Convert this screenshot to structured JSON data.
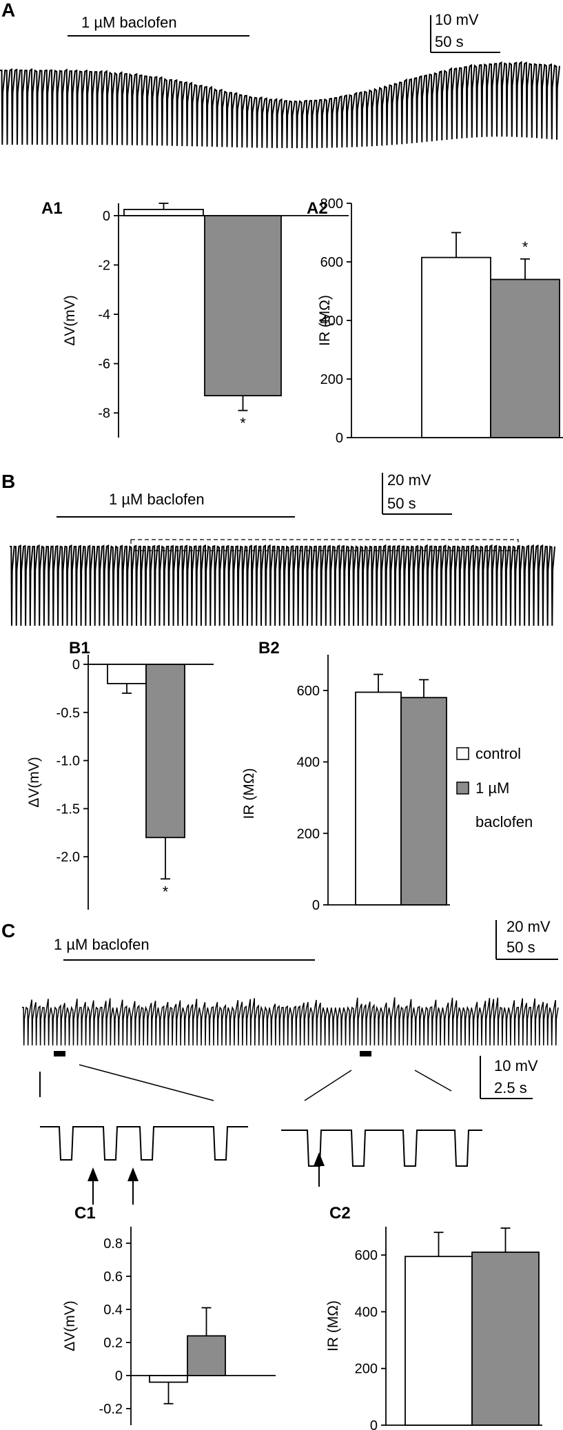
{
  "panels": {
    "A": {
      "letter": "A",
      "drug_label": "1 µM baclofen",
      "scale_v": "10 mV",
      "scale_t": "50 s"
    },
    "B": {
      "letter": "B",
      "drug_label": "1 µM baclofen",
      "scale_v": "20 mV",
      "scale_t": "50 s"
    },
    "C": {
      "letter": "C",
      "drug_label": "1 µM baclofen",
      "scale_v": "20 mV",
      "scale_t": "50 s",
      "inset_scale_v": "10 mV",
      "inset_scale_t": "2.5 s"
    }
  },
  "legend": {
    "control": "control",
    "baclofen_line1": "1 µM",
    "baclofen_line2": "baclofen",
    "control_color": "#ffffff",
    "baclofen_color": "#8c8c8c"
  },
  "chart_data": [
    {
      "id": "A1",
      "type": "bar",
      "title": "A1",
      "ylabel": "ΔV(mV)",
      "ylim": [
        -9,
        0.5
      ],
      "yticks": [
        0,
        -2,
        -4,
        -6,
        -8
      ],
      "yticklabels": [
        "0",
        "-2",
        "-4",
        "-6",
        "-8"
      ],
      "series": [
        {
          "values": [
            0.25,
            -7.3
          ],
          "errors": [
            0.25,
            0.6
          ]
        }
      ],
      "annotations": [
        "*"
      ]
    },
    {
      "id": "A2",
      "type": "bar",
      "title": "A2",
      "ylabel": "IR (MΩ)",
      "ylim": [
        0,
        800
      ],
      "yticks": [
        0,
        200,
        400,
        600,
        800
      ],
      "yticklabels": [
        "0",
        "200",
        "400",
        "600",
        "800"
      ],
      "series": [
        {
          "values": [
            615,
            540
          ],
          "errors": [
            85,
            70
          ]
        }
      ],
      "annotations": [
        "*"
      ]
    },
    {
      "id": "B1",
      "type": "bar",
      "title": "B1",
      "ylabel": "ΔV(mV)",
      "ylim": [
        -2.55,
        0.1
      ],
      "yticks": [
        0,
        -0.5,
        -1.0,
        -1.5,
        -2.0
      ],
      "yticklabels": [
        "0",
        "-0.5",
        "-1.0",
        "-1.5",
        "-2.0"
      ],
      "series": [
        {
          "values": [
            -0.2,
            -1.8
          ],
          "errors": [
            0.1,
            0.43
          ]
        }
      ],
      "annotations": [
        "*"
      ]
    },
    {
      "id": "B2",
      "type": "bar",
      "title": "B2",
      "ylabel": "IR (MΩ)",
      "ylim": [
        0,
        700
      ],
      "yticks": [
        0,
        200,
        400,
        600
      ],
      "yticklabels": [
        "0",
        "200",
        "400",
        "600"
      ],
      "series": [
        {
          "values": [
            595,
            580
          ],
          "errors": [
            50,
            50
          ]
        }
      ]
    },
    {
      "id": "C1",
      "type": "bar",
      "title": "C1",
      "ylabel": "ΔV(mV)",
      "ylim": [
        -0.3,
        0.9
      ],
      "yticks": [
        0.8,
        0.6,
        0.4,
        0.2,
        0,
        -0.2
      ],
      "yticklabels": [
        "0.8",
        "0.6",
        "0.4",
        "0.2",
        "0",
        "-0.2"
      ],
      "series": [
        {
          "values": [
            -0.04,
            0.24
          ],
          "errors": [
            0.13,
            0.17
          ]
        }
      ]
    },
    {
      "id": "C2",
      "type": "bar",
      "title": "C2",
      "ylabel": "IR (MΩ)",
      "ylim": [
        0,
        700
      ],
      "yticks": [
        0,
        200,
        400,
        600
      ],
      "yticklabels": [
        "0",
        "200",
        "400",
        "600"
      ],
      "series": [
        {
          "values": [
            595,
            610
          ],
          "errors": [
            85,
            85
          ]
        }
      ]
    }
  ]
}
